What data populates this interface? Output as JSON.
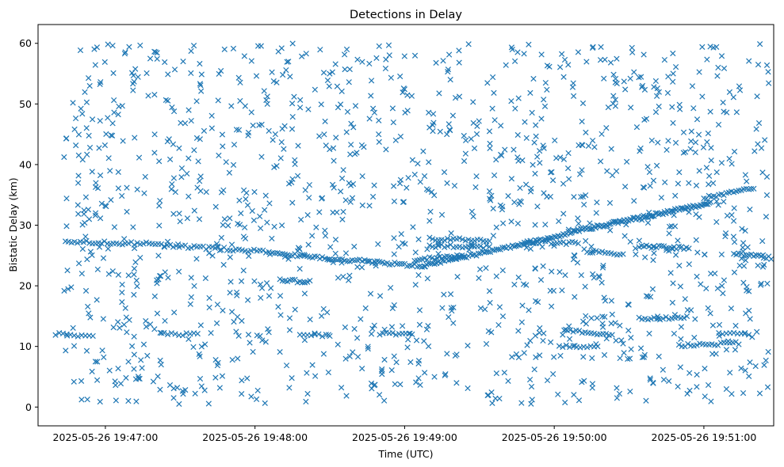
{
  "chart_data": {
    "type": "scatter",
    "title": "Detections in Delay",
    "xlabel": "Time (UTC)",
    "ylabel": "Bistatic Delay (km)",
    "x_unit": "seconds after 2025-05-26 19:46:00 UTC",
    "xlim": [
      33,
      328
    ],
    "ylim": [
      -3.1,
      63.1
    ],
    "x_ticks": [
      {
        "value": 60,
        "label": "2025-05-26 19:47:00"
      },
      {
        "value": 120,
        "label": "2025-05-26 19:48:00"
      },
      {
        "value": 180,
        "label": "2025-05-26 19:49:00"
      },
      {
        "value": 240,
        "label": "2025-05-26 19:50:00"
      },
      {
        "value": 300,
        "label": "2025-05-26 19:51:00"
      }
    ],
    "y_ticks": [
      {
        "value": 0,
        "label": "0"
      },
      {
        "value": 10,
        "label": "10"
      },
      {
        "value": 20,
        "label": "20"
      },
      {
        "value": 30,
        "label": "30"
      },
      {
        "value": 40,
        "label": "40"
      },
      {
        "value": 50,
        "label": "50"
      },
      {
        "value": 60,
        "label": "60"
      }
    ],
    "grid": false,
    "legend": "none",
    "marker": "x",
    "color": "#1f77b4",
    "series": [
      {
        "name": "",
        "tracks": [
          {
            "x": [
              44,
              80
            ],
            "y": [
              27.3,
              26.9
            ],
            "step": 1.2
          },
          {
            "x": [
              80,
              126
            ],
            "y": [
              26.8,
              25.6
            ],
            "step": 1.2
          },
          {
            "x": [
              126,
              188
            ],
            "y": [
              25.4,
              23.2
            ],
            "step": 1.0
          },
          {
            "x": [
              188,
              224
            ],
            "y": [
              23.4,
              26.5
            ],
            "step": 0.8
          },
          {
            "x": [
              224,
              247
            ],
            "y": [
              26.6,
              28.8
            ],
            "step": 0.7
          },
          {
            "x": [
              247,
              303
            ],
            "y": [
              28.9,
              33.7
            ],
            "step": 0.6
          },
          {
            "x": [
              300,
              320
            ],
            "y": [
              34.5,
              36.2
            ],
            "step": 1.0
          },
          {
            "x": [
              40,
              55
            ],
            "y": [
              12.0,
              11.8
            ],
            "step": 1.5
          },
          {
            "x": [
              82,
              97
            ],
            "y": [
              12.1,
              12.0
            ],
            "step": 1.5
          },
          {
            "x": [
              130,
              142
            ],
            "y": [
              21.0,
              20.6
            ],
            "step": 1.0
          },
          {
            "x": [
              138,
              150
            ],
            "y": [
              12.0,
              11.7
            ],
            "step": 1.5
          },
          {
            "x": [
              184,
              204
            ],
            "y": [
              24.3,
              25.0
            ],
            "step": 1.0
          },
          {
            "x": [
              170,
              184
            ],
            "y": [
              12.1,
              12.0
            ],
            "step": 1.3
          },
          {
            "x": [
              190,
              215
            ],
            "y": [
              27.8,
              27.5
            ],
            "step": 1.2
          },
          {
            "x": [
              190,
              215
            ],
            "y": [
              26.6,
              26.4
            ],
            "step": 1.2
          },
          {
            "x": [
              228,
              250
            ],
            "y": [
              27.3,
              27.0
            ],
            "step": 1.2
          },
          {
            "x": [
              244,
              264
            ],
            "y": [
              12.6,
              12.0
            ],
            "step": 1.2
          },
          {
            "x": [
              242,
              258
            ],
            "y": [
              10.1,
              10.0
            ],
            "step": 1.4
          },
          {
            "x": [
              252,
              268
            ],
            "y": [
              25.8,
              25.2
            ],
            "step": 1.2
          },
          {
            "x": [
              274,
              294
            ],
            "y": [
              26.5,
              26.2
            ],
            "step": 1.0
          },
          {
            "x": [
              274,
              294
            ],
            "y": [
              14.6,
              14.8
            ],
            "step": 1.2
          },
          {
            "x": [
              290,
              315
            ],
            "y": [
              10.1,
              10.6
            ],
            "step": 1.2
          },
          {
            "x": [
              306,
              318
            ],
            "y": [
              12.0,
              12.0
            ],
            "step": 1.5
          },
          {
            "x": [
              312,
              327
            ],
            "y": [
              25.4,
              24.6
            ],
            "step": 1.0
          }
        ],
        "scatter": {
          "count": 1350,
          "x_range": [
            43,
            326
          ],
          "y_range": [
            0.5,
            60.0
          ],
          "seed": 20250526
        }
      }
    ]
  }
}
